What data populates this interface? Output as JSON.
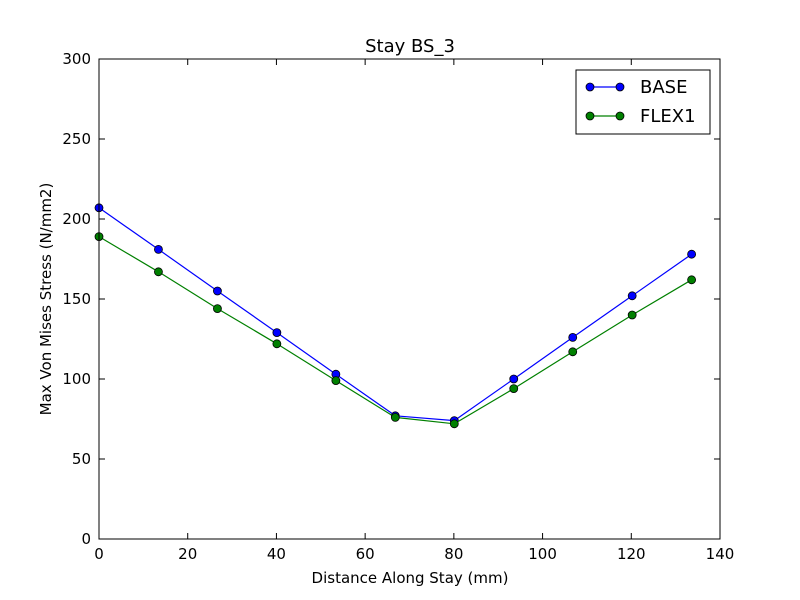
{
  "chart_data": {
    "type": "line",
    "title": "Stay BS_3",
    "xlabel": "Distance Along Stay (mm)",
    "ylabel": "Max Von Mises Stress (N/mm2)",
    "xlim": [
      0,
      140
    ],
    "ylim": [
      0,
      300
    ],
    "xticks": [
      0,
      20,
      40,
      60,
      80,
      100,
      120,
      140
    ],
    "yticks": [
      0,
      50,
      100,
      150,
      200,
      250,
      300
    ],
    "grid": false,
    "legend_position": "top-right",
    "x": [
      0,
      13.4,
      26.7,
      40.1,
      53.4,
      66.8,
      80.1,
      93.5,
      106.8,
      120.2,
      133.6
    ],
    "series": [
      {
        "name": "BASE",
        "color": "#0000ff",
        "values": [
          207,
          181,
          155,
          129,
          103,
          77,
          74,
          100,
          126,
          152,
          178
        ]
      },
      {
        "name": "FLEX1",
        "color": "#008000",
        "values": [
          189,
          167,
          144,
          122,
          99,
          76,
          72,
          94,
          117,
          140,
          162
        ]
      }
    ]
  }
}
